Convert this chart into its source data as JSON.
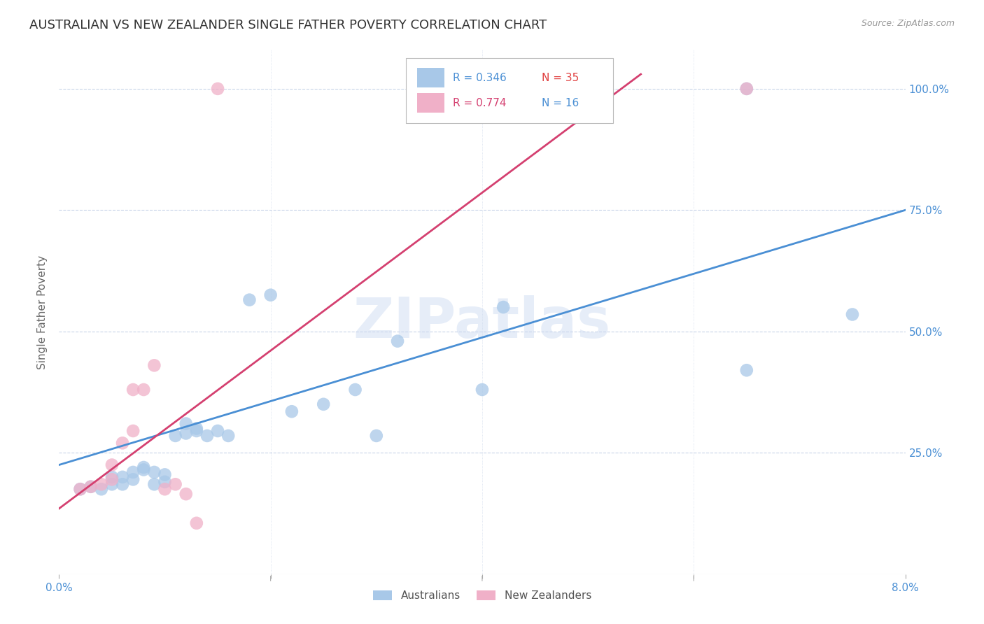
{
  "title": "AUSTRALIAN VS NEW ZEALANDER SINGLE FATHER POVERTY CORRELATION CHART",
  "source": "Source: ZipAtlas.com",
  "ylabel": "Single Father Poverty",
  "ytick_labels": [
    "100.0%",
    "75.0%",
    "50.0%",
    "25.0%"
  ],
  "ytick_values": [
    1.0,
    0.75,
    0.5,
    0.25
  ],
  "xlim": [
    0.0,
    0.08
  ],
  "ylim": [
    0.0,
    1.08
  ],
  "watermark": "ZIPatlas",
  "aus_color": "#a8c8e8",
  "nz_color": "#f0b0c8",
  "aus_line_color": "#4a8fd4",
  "nz_line_color": "#d44070",
  "aus_line_color_text": "#4a8fd4",
  "nz_line_color_text": "#d44070",
  "n_color": "#e04040",
  "n2_color": "#4a8fd4",
  "background_color": "#ffffff",
  "grid_color": "#c8d4e8",
  "title_fontsize": 13,
  "axis_label_fontsize": 11,
  "tick_fontsize": 11,
  "aus_x": [
    0.002,
    0.003,
    0.004,
    0.005,
    0.005,
    0.006,
    0.006,
    0.007,
    0.007,
    0.008,
    0.008,
    0.009,
    0.009,
    0.01,
    0.01,
    0.011,
    0.012,
    0.012,
    0.013,
    0.013,
    0.014,
    0.015,
    0.016,
    0.018,
    0.02,
    0.022,
    0.025,
    0.028,
    0.03,
    0.032,
    0.04,
    0.042,
    0.065,
    0.065,
    0.075
  ],
  "aus_y": [
    0.175,
    0.18,
    0.175,
    0.185,
    0.2,
    0.185,
    0.2,
    0.195,
    0.21,
    0.215,
    0.22,
    0.21,
    0.185,
    0.205,
    0.19,
    0.285,
    0.29,
    0.31,
    0.3,
    0.295,
    0.285,
    0.295,
    0.285,
    0.565,
    0.575,
    0.335,
    0.35,
    0.38,
    0.285,
    0.48,
    0.38,
    0.55,
    1.0,
    0.42,
    0.535
  ],
  "nz_x": [
    0.002,
    0.003,
    0.004,
    0.005,
    0.005,
    0.006,
    0.007,
    0.007,
    0.008,
    0.009,
    0.01,
    0.011,
    0.012,
    0.013,
    0.015,
    0.065
  ],
  "nz_y": [
    0.175,
    0.18,
    0.185,
    0.195,
    0.225,
    0.27,
    0.295,
    0.38,
    0.38,
    0.43,
    0.175,
    0.185,
    0.165,
    0.105,
    1.0,
    1.0
  ],
  "aus_line_x": [
    0.0,
    0.08
  ],
  "aus_line_y": [
    0.225,
    0.75
  ],
  "nz_line_x": [
    0.0,
    0.055
  ],
  "nz_line_y": [
    0.135,
    1.03
  ]
}
